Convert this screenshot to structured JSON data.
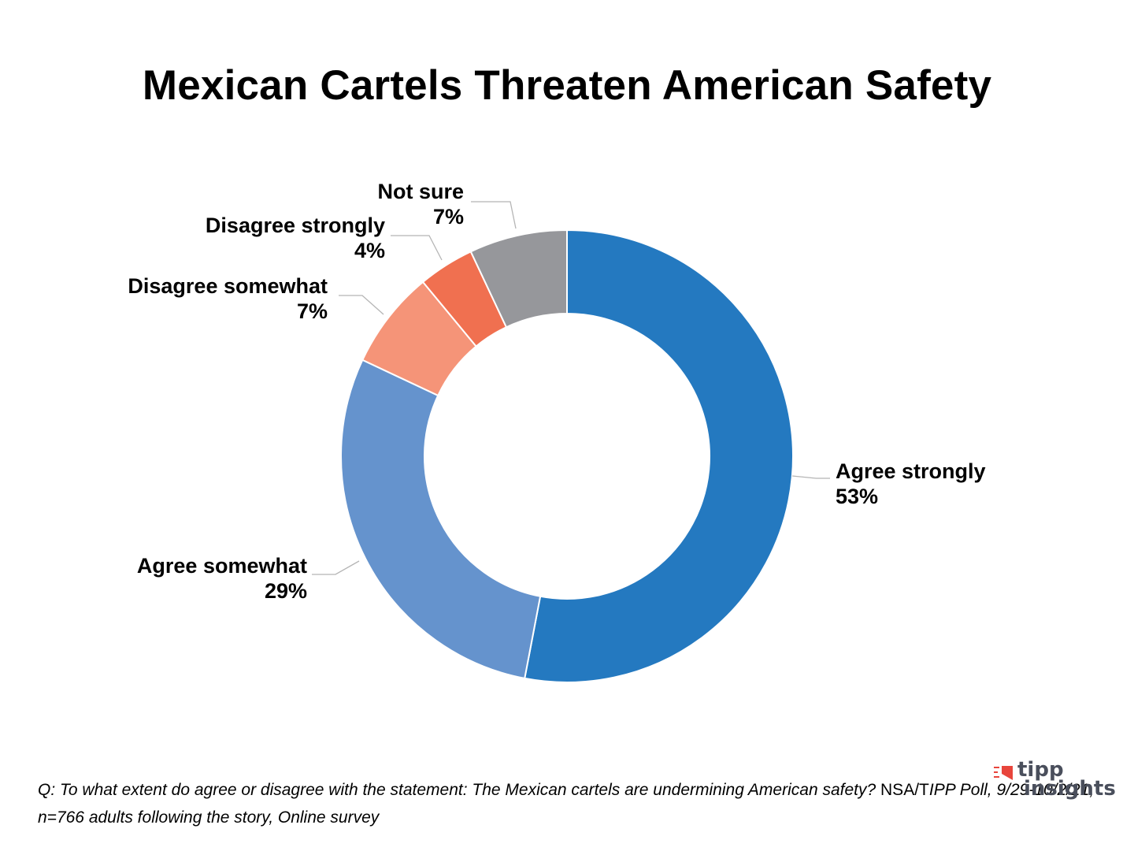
{
  "chart_data": {
    "type": "pie",
    "variant": "donut",
    "title": "Mexican Cartels Threaten American Safety",
    "slices": [
      {
        "label": "Agree strongly",
        "value": 53,
        "value_label": "53%",
        "color": "#2479c0"
      },
      {
        "label": "Agree somewhat",
        "value": 29,
        "value_label": "29%",
        "color": "#6593cd"
      },
      {
        "label": "Disagree somewhat",
        "value": 7,
        "value_label": "7%",
        "color": "#f59478"
      },
      {
        "label": "Disagree strongly",
        "value": 4,
        "value_label": "4%",
        "color": "#f07050"
      },
      {
        "label": "Not sure",
        "value": 7,
        "value_label": "7%",
        "color": "#96979b"
      }
    ]
  },
  "footnote": {
    "question": "Q: To what extent do agree or disagree with the statement:  The Mexican cartels are undermining American safety?",
    "source_prefix": "NSA/T",
    "source": "IPP Poll, 9/29-10/2/21, n=766 adults following the story, Online survey"
  },
  "logo": {
    "word1": "tipp",
    "word2": "insights",
    "accent": "#e8453c",
    "text_color": "#4a4f5c"
  }
}
